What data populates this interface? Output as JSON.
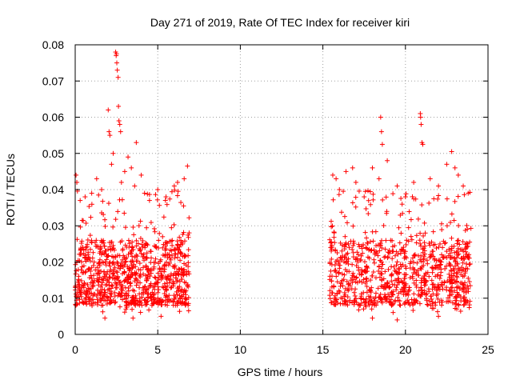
{
  "chart_data": {
    "type": "scatter",
    "title": "Day 271 of 2019, Rate Of TEC Index for receiver kiri",
    "xlabel": "GPS time / hours",
    "ylabel": "ROTI / TECUs",
    "xlim": [
      0,
      25
    ],
    "ylim": [
      0,
      0.08
    ],
    "x_ticks": [
      0,
      5,
      10,
      15,
      20,
      25
    ],
    "x_tick_labels": [
      "0",
      "5",
      "10",
      "15",
      "20",
      "25"
    ],
    "y_ticks": [
      0,
      0.01,
      0.02,
      0.03,
      0.04,
      0.05,
      0.06,
      0.07,
      0.08
    ],
    "y_tick_labels": [
      "0",
      "0.01",
      "0.02",
      "0.03",
      "0.04",
      "0.05",
      "0.06",
      "0.07",
      "0.08"
    ],
    "grid": true,
    "marker": "+",
    "color": "#ff0000",
    "series": [
      {
        "name": "ROTI",
        "segments": [
          {
            "x_start": 0.0,
            "x_end": 6.9,
            "typical_range": [
              0.006,
              0.03
            ]
          },
          {
            "x_start": 15.4,
            "x_end": 24.0,
            "typical_range": [
              0.006,
              0.03
            ]
          }
        ],
        "points": [
          [
            0.05,
            0.044
          ],
          [
            0.1,
            0.042
          ],
          [
            0.3,
            0.037
          ],
          [
            0.6,
            0.038
          ],
          [
            1.0,
            0.039
          ],
          [
            1.3,
            0.043
          ],
          [
            1.6,
            0.04
          ],
          [
            2.0,
            0.062
          ],
          [
            2.05,
            0.056
          ],
          [
            2.1,
            0.055
          ],
          [
            2.2,
            0.047
          ],
          [
            2.3,
            0.05
          ],
          [
            2.45,
            0.078
          ],
          [
            2.48,
            0.077
          ],
          [
            2.5,
            0.0775
          ],
          [
            2.52,
            0.075
          ],
          [
            2.55,
            0.073
          ],
          [
            2.6,
            0.071
          ],
          [
            2.62,
            0.063
          ],
          [
            2.65,
            0.059
          ],
          [
            2.7,
            0.058
          ],
          [
            2.75,
            0.056
          ],
          [
            2.8,
            0.042
          ],
          [
            3.0,
            0.045
          ],
          [
            3.2,
            0.049
          ],
          [
            3.4,
            0.046
          ],
          [
            3.6,
            0.041
          ],
          [
            3.7,
            0.053
          ],
          [
            4.0,
            0.044
          ],
          [
            4.2,
            0.039
          ],
          [
            4.5,
            0.037
          ],
          [
            5.0,
            0.04
          ],
          [
            5.5,
            0.038
          ],
          [
            6.0,
            0.041
          ],
          [
            6.2,
            0.042
          ],
          [
            6.6,
            0.043
          ],
          [
            6.8,
            0.0465
          ],
          [
            15.6,
            0.044
          ],
          [
            15.8,
            0.043
          ],
          [
            16.0,
            0.04
          ],
          [
            16.4,
            0.045
          ],
          [
            16.8,
            0.046
          ],
          [
            17.0,
            0.042
          ],
          [
            17.5,
            0.038
          ],
          [
            18.0,
            0.046
          ],
          [
            18.4,
            0.043
          ],
          [
            18.5,
            0.06
          ],
          [
            18.55,
            0.056
          ],
          [
            18.6,
            0.0525
          ],
          [
            18.9,
            0.048
          ],
          [
            19.5,
            0.041
          ],
          [
            20.0,
            0.038
          ],
          [
            20.5,
            0.042
          ],
          [
            20.9,
            0.061
          ],
          [
            20.92,
            0.06
          ],
          [
            20.95,
            0.058
          ],
          [
            21.0,
            0.053
          ],
          [
            21.05,
            0.0525
          ],
          [
            21.5,
            0.043
          ],
          [
            22.0,
            0.041
          ],
          [
            22.5,
            0.047
          ],
          [
            22.8,
            0.0505
          ],
          [
            23.0,
            0.046
          ],
          [
            23.2,
            0.044
          ],
          [
            23.5,
            0.041
          ],
          [
            23.8,
            0.039
          ],
          [
            1.8,
            0.0045
          ],
          [
            3.5,
            0.0045
          ],
          [
            5.2,
            0.005
          ],
          [
            18.0,
            0.0045
          ],
          [
            19.5,
            0.004
          ],
          [
            22.0,
            0.005
          ]
        ]
      }
    ]
  }
}
